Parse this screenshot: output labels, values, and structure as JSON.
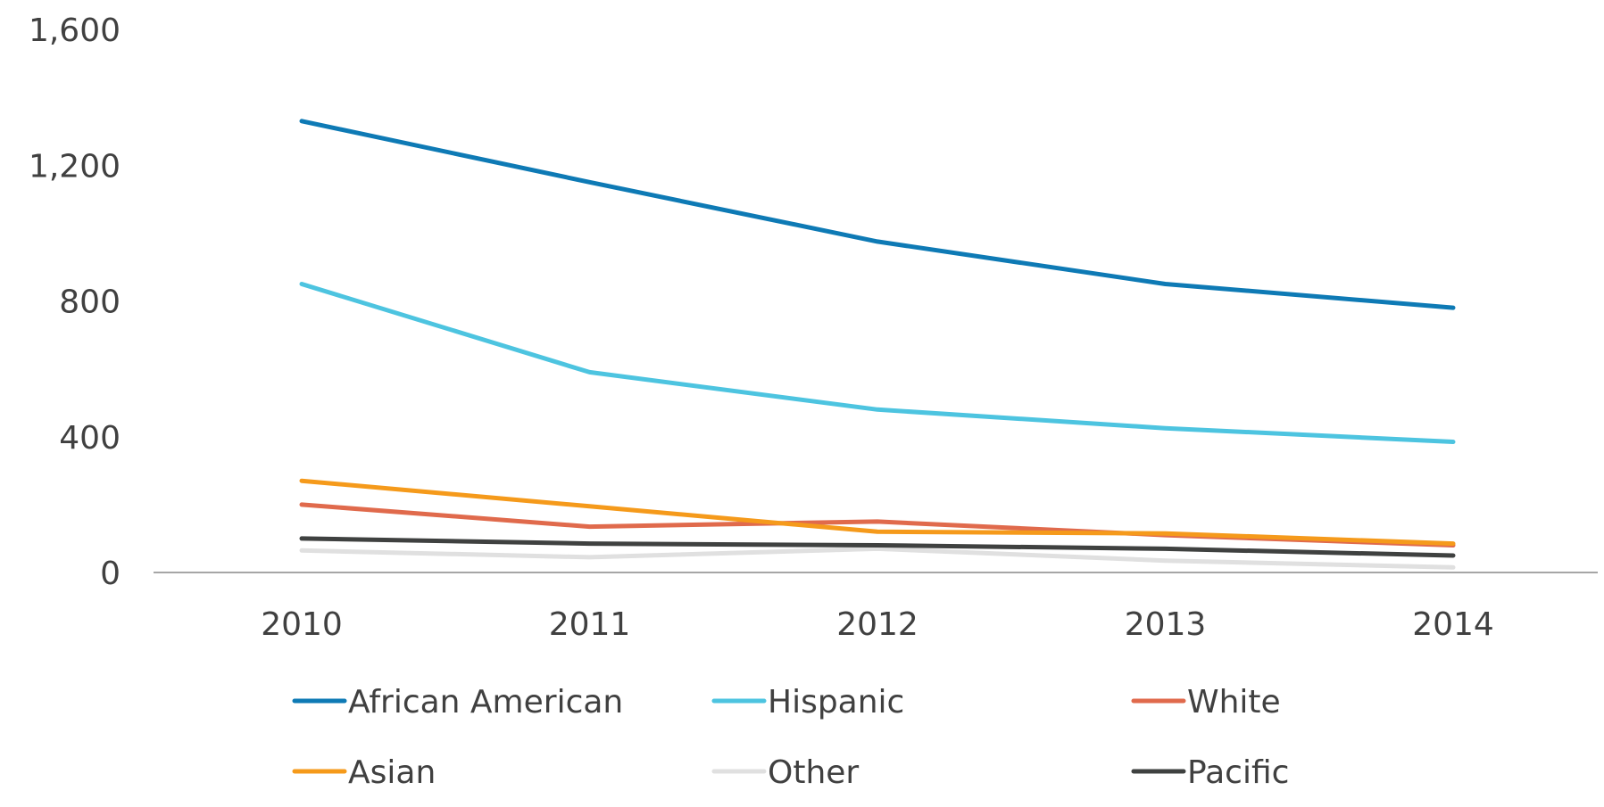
{
  "chart_data": {
    "type": "line",
    "title": "",
    "xlabel": "",
    "ylabel": "",
    "x": [
      "2010",
      "2011",
      "2012",
      "2013",
      "2014"
    ],
    "ylim": [
      0,
      1600
    ],
    "yticks": [
      0,
      400,
      800,
      1200,
      1600
    ],
    "ytick_labels": [
      "0",
      "400",
      "800",
      "1,200",
      "1,600"
    ],
    "grid": false,
    "legend_position": "bottom",
    "series": [
      {
        "name": "African American",
        "color": "#0e7ab5",
        "values": [
          1330,
          1150,
          975,
          850,
          780
        ]
      },
      {
        "name": "Hispanic",
        "color": "#4dc4e0",
        "values": [
          850,
          590,
          480,
          425,
          385
        ]
      },
      {
        "name": "White",
        "color": "#e06a4c",
        "values": [
          200,
          135,
          150,
          110,
          80
        ]
      },
      {
        "name": "Asian",
        "color": "#f59a1b",
        "values": [
          270,
          195,
          120,
          115,
          85
        ]
      },
      {
        "name": "Other",
        "color": "#e0e0e0",
        "values": [
          65,
          45,
          70,
          35,
          15
        ]
      },
      {
        "name": "Pacific",
        "color": "#3f4140",
        "values": [
          100,
          85,
          80,
          70,
          50
        ]
      }
    ]
  }
}
